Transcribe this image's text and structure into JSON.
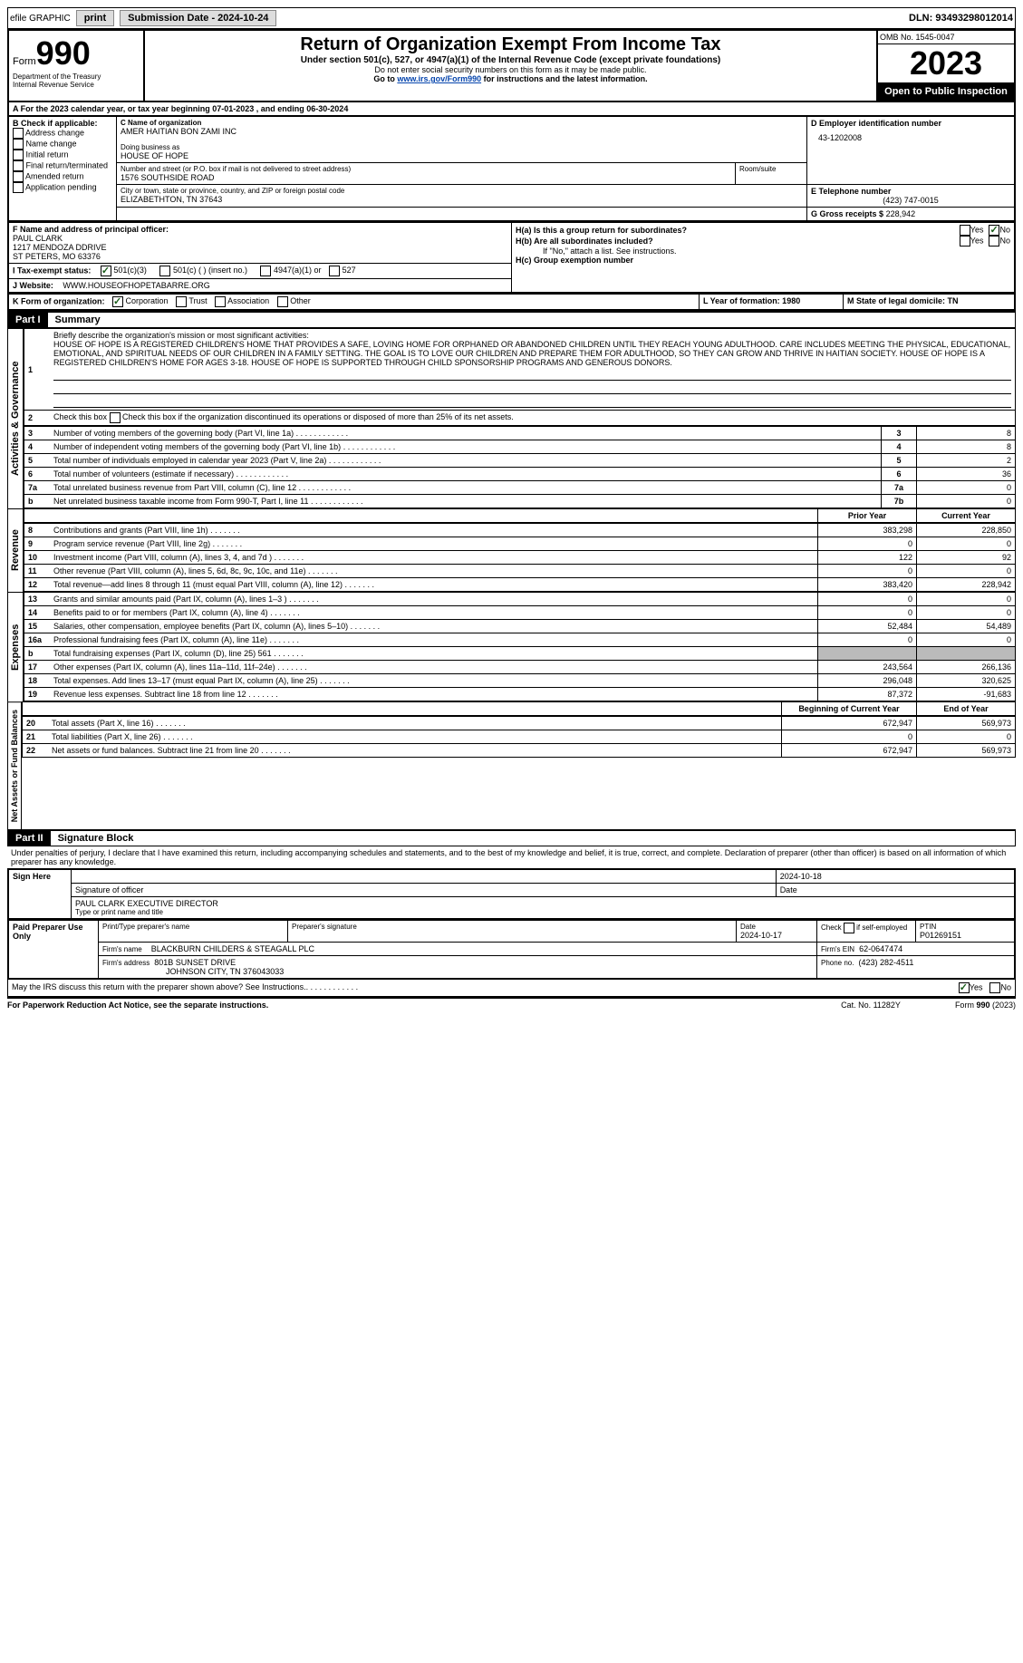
{
  "topbar": {
    "efile": "efile GRAPHIC",
    "print": "print",
    "sub_label": "Submission Date - 2024-10-24",
    "dln": "DLN: 93493298012014"
  },
  "header": {
    "form": "Form",
    "formno": "990",
    "dept1": "Department of the Treasury",
    "dept2": "Internal Revenue Service",
    "title": "Return of Organization Exempt From Income Tax",
    "sub": "Under section 501(c), 527, or 4947(a)(1) of the Internal Revenue Code (except private foundations)",
    "nossn": "Do not enter social security numbers on this form as it may be made public.",
    "goto": "Go to ",
    "goto_link": "www.irs.gov/Form990",
    "goto2": " for instructions and the latest information.",
    "omb": "OMB No. 1545-0047",
    "year": "2023",
    "open": "Open to Public Inspection"
  },
  "a": {
    "line": "A For the 2023 calendar year, or tax year beginning 07-01-2023   , and ending 06-30-2024"
  },
  "b": {
    "label": "B Check if applicable:",
    "opts": [
      "Address change",
      "Name change",
      "Initial return",
      "Final return/terminated",
      "Amended return",
      "Application pending"
    ]
  },
  "c": {
    "label": "C Name of organization",
    "name": "AMER HAITIAN BON ZAMI INC",
    "dba_label": "Doing business as",
    "dba": "HOUSE OF HOPE",
    "street_label": "Number and street (or P.O. box if mail is not delivered to street address)",
    "room_label": "Room/suite",
    "street": "1576 SOUTHSIDE ROAD",
    "city_label": "City or town, state or province, country, and ZIP or foreign postal code",
    "city": "ELIZABETHTON, TN  37643"
  },
  "d": {
    "label": "D Employer identification number",
    "val": "43-1202008"
  },
  "e": {
    "label": "E Telephone number",
    "val": "(423) 747-0015"
  },
  "g": {
    "label": "G Gross receipts $",
    "val": "228,942"
  },
  "f": {
    "label": "F  Name and address of principal officer:",
    "name": "PAUL CLARK",
    "addr1": "1217 MENDOZA DDRIVE",
    "addr2": "ST PETERS, MO  63376"
  },
  "h": {
    "a_label": "H(a)  Is this a group return for subordinates?",
    "b_label": "H(b)  Are all subordinates included?",
    "b_note": "If \"No,\" attach a list. See instructions.",
    "c_label": "H(c)  Group exemption number",
    "yes": "Yes",
    "no": "No"
  },
  "i": {
    "label": "I    Tax-exempt status:",
    "o1": "501(c)(3)",
    "o2": "501(c) (  ) (insert no.)",
    "o3": "4947(a)(1) or",
    "o4": "527"
  },
  "j": {
    "label": "J   Website:",
    "val": "WWW.HOUSEOFHOPETABARRE.ORG"
  },
  "k": {
    "label": "K Form of organization:",
    "o1": "Corporation",
    "o2": "Trust",
    "o3": "Association",
    "o4": "Other"
  },
  "l": {
    "label": "L Year of formation: 1980"
  },
  "m": {
    "label": "M State of legal domicile: TN"
  },
  "part1": {
    "label": "Part I",
    "title": "Summary",
    "q1_label": "Briefly describe the organization's mission or most significant activities:",
    "q1_text": "HOUSE OF HOPE IS A REGISTERED CHILDREN'S HOME THAT PROVIDES A SAFE, LOVING HOME FOR ORPHANED OR ABANDONED CHILDREN UNTIL THEY REACH YOUNG ADULTHOOD. CARE INCLUDES MEETING THE PHYSICAL, EDUCATIONAL, EMOTIONAL, AND SPIRITUAL NEEDS OF OUR CHILDREN IN A FAMILY SETTING. THE GOAL IS TO LOVE OUR CHILDREN AND PREPARE THEM FOR ADULTHOOD, SO THEY CAN GROW AND THRIVE IN HAITIAN SOCIETY. HOUSE OF HOPE IS A REGISTERED CHILDREN'S HOME FOR AGES 3-18. HOUSE OF HOPE IS SUPPORTED THROUGH CHILD SPONSORSHIP PROGRAMS AND GENEROUS DONORS.",
    "q2": "Check this box  if the organization discontinued its operations or disposed of more than 25% of its net assets.",
    "rows_ag": [
      {
        "n": "3",
        "t": "Number of voting members of the governing body (Part VI, line 1a)",
        "c": "3",
        "v": "8"
      },
      {
        "n": "4",
        "t": "Number of independent voting members of the governing body (Part VI, line 1b)",
        "c": "4",
        "v": "8"
      },
      {
        "n": "5",
        "t": "Total number of individuals employed in calendar year 2023 (Part V, line 2a)",
        "c": "5",
        "v": "2"
      },
      {
        "n": "6",
        "t": "Total number of volunteers (estimate if necessary)",
        "c": "6",
        "v": "36"
      },
      {
        "n": "7a",
        "t": "Total unrelated business revenue from Part VIII, column (C), line 12",
        "c": "7a",
        "v": "0"
      },
      {
        "n": "b",
        "t": "Net unrelated business taxable income from Form 990-T, Part I, line 11",
        "c": "7b",
        "v": "0"
      }
    ],
    "prior_hdr": "Prior Year",
    "curr_hdr": "Current Year",
    "rev_label": "Revenue",
    "rows_rev": [
      {
        "n": "8",
        "t": "Contributions and grants (Part VIII, line 1h)",
        "p": "383,298",
        "c": "228,850"
      },
      {
        "n": "9",
        "t": "Program service revenue (Part VIII, line 2g)",
        "p": "0",
        "c": "0"
      },
      {
        "n": "10",
        "t": "Investment income (Part VIII, column (A), lines 3, 4, and 7d )",
        "p": "122",
        "c": "92"
      },
      {
        "n": "11",
        "t": "Other revenue (Part VIII, column (A), lines 5, 6d, 8c, 9c, 10c, and 11e)",
        "p": "0",
        "c": "0"
      },
      {
        "n": "12",
        "t": "Total revenue—add lines 8 through 11 (must equal Part VIII, column (A), line 12)",
        "p": "383,420",
        "c": "228,942"
      }
    ],
    "exp_label": "Expenses",
    "rows_exp": [
      {
        "n": "13",
        "t": "Grants and similar amounts paid (Part IX, column (A), lines 1–3 )",
        "p": "0",
        "c": "0"
      },
      {
        "n": "14",
        "t": "Benefits paid to or for members (Part IX, column (A), line 4)",
        "p": "0",
        "c": "0"
      },
      {
        "n": "15",
        "t": "Salaries, other compensation, employee benefits (Part IX, column (A), lines 5–10)",
        "p": "52,484",
        "c": "54,489"
      },
      {
        "n": "16a",
        "t": "Professional fundraising fees (Part IX, column (A), line 11e)",
        "p": "0",
        "c": "0"
      },
      {
        "n": "b",
        "t": "Total fundraising expenses (Part IX, column (D), line 25) 561",
        "p": "",
        "c": "",
        "gray": true
      },
      {
        "n": "17",
        "t": "Other expenses (Part IX, column (A), lines 11a–11d, 11f–24e)",
        "p": "243,564",
        "c": "266,136"
      },
      {
        "n": "18",
        "t": "Total expenses. Add lines 13–17 (must equal Part IX, column (A), line 25)",
        "p": "296,048",
        "c": "320,625"
      },
      {
        "n": "19",
        "t": "Revenue less expenses. Subtract line 18 from line 12",
        "p": "87,372",
        "c": "-91,683"
      }
    ],
    "na_label": "Net Assets or Fund Balances",
    "beg_hdr": "Beginning of Current Year",
    "end_hdr": "End of Year",
    "rows_na": [
      {
        "n": "20",
        "t": "Total assets (Part X, line 16)",
        "p": "672,947",
        "c": "569,973"
      },
      {
        "n": "21",
        "t": "Total liabilities (Part X, line 26)",
        "p": "0",
        "c": "0"
      },
      {
        "n": "22",
        "t": "Net assets or fund balances. Subtract line 21 from line 20",
        "p": "672,947",
        "c": "569,973"
      }
    ]
  },
  "part2": {
    "label": "Part II",
    "title": "Signature Block",
    "decl": "Under penalties of perjury, I declare that I have examined this return, including accompanying schedules and statements, and to the best of my knowledge and belief, it is true, correct, and complete. Declaration of preparer (other than officer) is based on all information of which preparer has any knowledge.",
    "sign_here": "Sign Here",
    "sig_date": "2024-10-18",
    "sig_label": "Signature of officer",
    "date_label": "Date",
    "officer": "PAUL CLARK  EXECUTIVE DIRECTOR",
    "officer_label": "Type or print name and title",
    "paid": "Paid Preparer Use Only",
    "pp_name_label": "Print/Type preparer's name",
    "pp_sig_label": "Preparer's signature",
    "pp_date_label": "Date",
    "pp_date": "2024-10-17",
    "pp_check": "Check         if self-employed",
    "ptin_label": "PTIN",
    "ptin": "P01269151",
    "firm_name_label": "Firm's name",
    "firm_name": "BLACKBURN CHILDERS & STEAGALL PLC",
    "firm_ein_label": "Firm's EIN",
    "firm_ein": "62-0647474",
    "firm_addr_label": "Firm's address",
    "firm_addr1": "801B SUNSET DRIVE",
    "firm_addr2": "JOHNSON CITY, TN  376043033",
    "firm_phone_label": "Phone no.",
    "firm_phone": "(423) 282-4511",
    "discuss": "May the IRS discuss this return with the preparer shown above? See Instructions.",
    "yes": "Yes",
    "no": "No"
  },
  "footer": {
    "pra": "For Paperwork Reduction Act Notice, see the separate instructions.",
    "cat": "Cat. No. 11282Y",
    "form": "Form 990 (2023)"
  }
}
